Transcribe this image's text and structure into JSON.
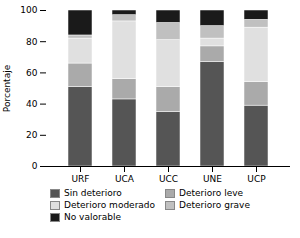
{
  "chart_data": {
    "type": "bar",
    "stacked": true,
    "ylabel": "Porcentaje",
    "categories": [
      "URF",
      "UCA",
      "UCC",
      "UNE",
      "UCP"
    ],
    "series": [
      {
        "name": "Sin deterioro",
        "color": "#555555",
        "values": [
          51,
          43,
          35,
          67,
          39
        ]
      },
      {
        "name": "Deterioro leve",
        "color": "#aaaaaa",
        "values": [
          15,
          13,
          16,
          10,
          15
        ]
      },
      {
        "name": "Deterioro moderado",
        "color": "#e0e0e0",
        "values": [
          16,
          37,
          30,
          5,
          35
        ]
      },
      {
        "name": "Deterioro grave",
        "color": "#c0c0c0",
        "values": [
          2,
          4,
          11,
          8,
          5
        ]
      },
      {
        "name": "No valorable",
        "color": "#1a1a1a",
        "values": [
          16,
          3,
          8,
          10,
          6
        ]
      }
    ],
    "ylim": [
      0,
      100
    ],
    "yticks": [
      0,
      20,
      40,
      60,
      80,
      100
    ],
    "grid": false,
    "legend": "bottom"
  }
}
